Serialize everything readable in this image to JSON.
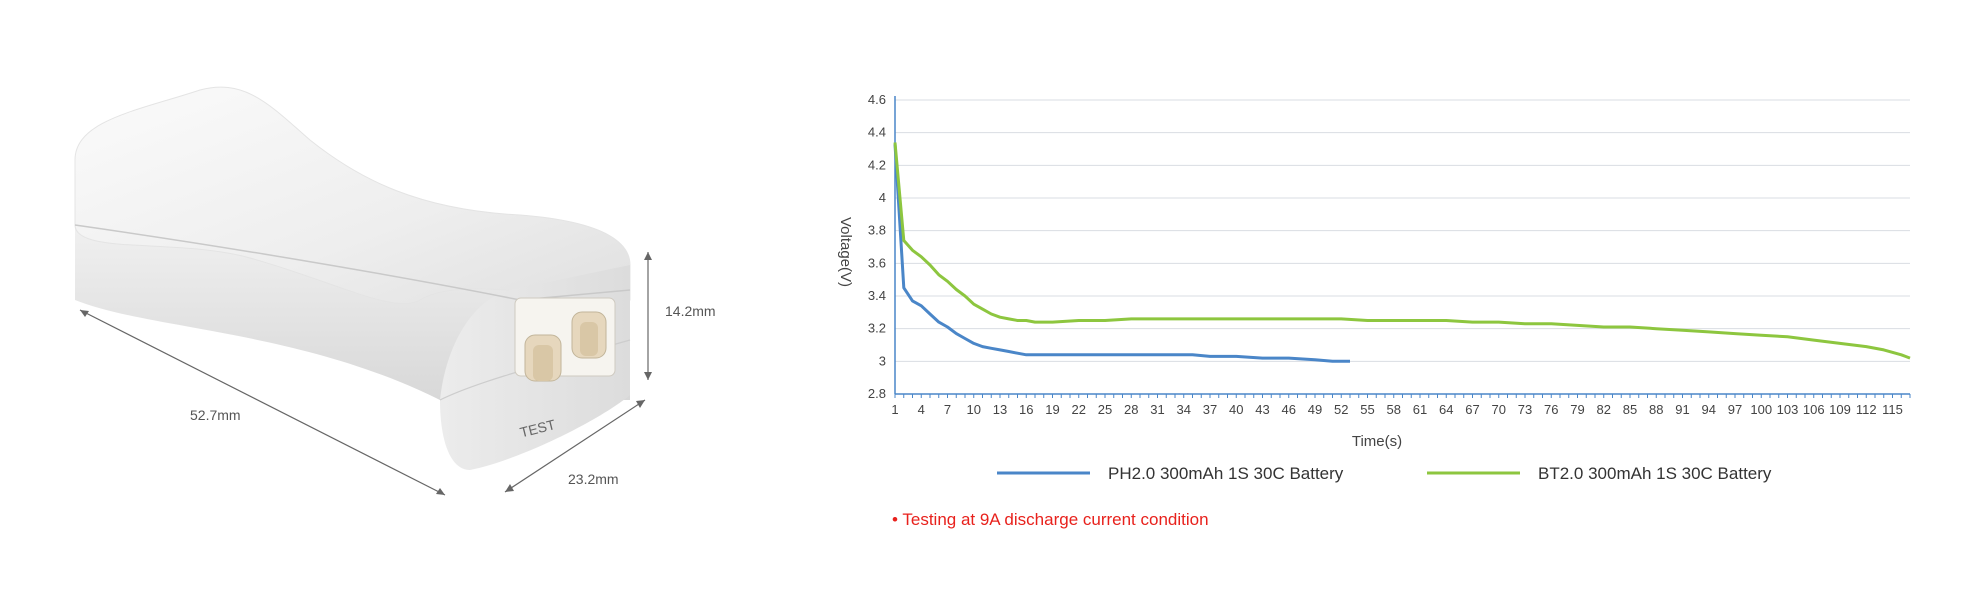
{
  "product": {
    "dim_length": "52.7mm",
    "dim_height": "14.2mm",
    "dim_width": "23.2mm",
    "port_label": "TEST"
  },
  "colors": {
    "ph_series": "#4a86c8",
    "bt_series": "#8dc63f",
    "note": "#e8211c",
    "grid": "#d9dde3"
  },
  "note": "• Testing at 9A discharge current condition",
  "chart_data": {
    "type": "line",
    "xlabel": "Time(s)",
    "ylabel": "Voltage(V)",
    "xlim": [
      1,
      117
    ],
    "ylim": [
      2.8,
      4.6
    ],
    "y_ticks": [
      "2.8",
      "3",
      "3.2",
      "3.4",
      "3.6",
      "3.8",
      "4",
      "4.2",
      "4.4",
      "4.6"
    ],
    "x_ticks": [
      "1",
      "4",
      "7",
      "10",
      "13",
      "16",
      "19",
      "22",
      "25",
      "28",
      "31",
      "34",
      "37",
      "40",
      "43",
      "46",
      "49",
      "52",
      "55",
      "58",
      "61",
      "64",
      "67",
      "70",
      "73",
      "76",
      "79",
      "82",
      "85",
      "88",
      "91",
      "94",
      "97",
      "100",
      "103",
      "106",
      "109",
      "112",
      "115"
    ],
    "grid": true,
    "legend_position": "bottom",
    "series": [
      {
        "name": "PH2.0 300mAh 1S 30C Battery",
        "x": [
          1,
          2,
          3,
          4,
          5,
          6,
          7,
          8,
          9,
          10,
          11,
          12,
          13,
          14,
          15,
          16,
          18,
          20,
          25,
          30,
          35,
          37,
          40,
          43,
          46,
          49,
          51,
          53
        ],
        "y": [
          4.33,
          3.45,
          3.37,
          3.34,
          3.29,
          3.24,
          3.21,
          3.17,
          3.14,
          3.11,
          3.09,
          3.08,
          3.07,
          3.06,
          3.05,
          3.04,
          3.04,
          3.04,
          3.04,
          3.04,
          3.04,
          3.03,
          3.03,
          3.02,
          3.02,
          3.01,
          3.0,
          3.0
        ]
      },
      {
        "name": "BT2.0 300mAh 1S 30C Battery",
        "x": [
          1,
          2,
          3,
          4,
          5,
          6,
          7,
          8,
          9,
          10,
          11,
          12,
          13,
          14,
          15,
          16,
          17,
          19,
          22,
          25,
          28,
          31,
          34,
          37,
          40,
          43,
          46,
          49,
          52,
          55,
          58,
          61,
          64,
          67,
          70,
          73,
          76,
          79,
          82,
          85,
          88,
          91,
          94,
          97,
          100,
          103,
          106,
          109,
          112,
          114,
          116,
          117
        ],
        "y": [
          4.34,
          3.74,
          3.68,
          3.64,
          3.59,
          3.53,
          3.49,
          3.44,
          3.4,
          3.35,
          3.32,
          3.29,
          3.27,
          3.26,
          3.25,
          3.25,
          3.24,
          3.24,
          3.25,
          3.25,
          3.26,
          3.26,
          3.26,
          3.26,
          3.26,
          3.26,
          3.26,
          3.26,
          3.26,
          3.25,
          3.25,
          3.25,
          3.25,
          3.24,
          3.24,
          3.23,
          3.23,
          3.22,
          3.21,
          3.21,
          3.2,
          3.19,
          3.18,
          3.17,
          3.16,
          3.15,
          3.13,
          3.11,
          3.09,
          3.07,
          3.04,
          3.02
        ]
      }
    ]
  }
}
